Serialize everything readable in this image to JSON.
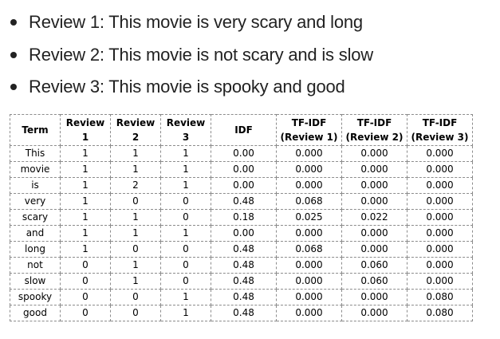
{
  "reviews": [
    "Review 1: This movie is very scary and long",
    "Review 2: This movie is not scary and is slow",
    "Review 3: This movie is spooky and good"
  ],
  "table": {
    "headers": [
      [
        "Term"
      ],
      [
        "Review",
        "1"
      ],
      [
        "Review",
        "2"
      ],
      [
        "Review",
        "3"
      ],
      [
        "IDF"
      ],
      [
        "TF-IDF",
        "(Review 1)"
      ],
      [
        "TF-IDF",
        "(Review 2)"
      ],
      [
        "TF-IDF",
        "(Review 3)"
      ]
    ],
    "rows": [
      [
        "This",
        "1",
        "1",
        "1",
        "0.00",
        "0.000",
        "0.000",
        "0.000"
      ],
      [
        "movie",
        "1",
        "1",
        "1",
        "0.00",
        "0.000",
        "0.000",
        "0.000"
      ],
      [
        "is",
        "1",
        "2",
        "1",
        "0.00",
        "0.000",
        "0.000",
        "0.000"
      ],
      [
        "very",
        "1",
        "0",
        "0",
        "0.48",
        "0.068",
        "0.000",
        "0.000"
      ],
      [
        "scary",
        "1",
        "1",
        "0",
        "0.18",
        "0.025",
        "0.022",
        "0.000"
      ],
      [
        "and",
        "1",
        "1",
        "1",
        "0.00",
        "0.000",
        "0.000",
        "0.000"
      ],
      [
        "long",
        "1",
        "0",
        "0",
        "0.48",
        "0.068",
        "0.000",
        "0.000"
      ],
      [
        "not",
        "0",
        "1",
        "0",
        "0.48",
        "0.000",
        "0.060",
        "0.000"
      ],
      [
        "slow",
        "0",
        "1",
        "0",
        "0.48",
        "0.000",
        "0.060",
        "0.000"
      ],
      [
        "spooky",
        "0",
        "0",
        "1",
        "0.48",
        "0.000",
        "0.000",
        "0.080"
      ],
      [
        "good",
        "0",
        "0",
        "1",
        "0.48",
        "0.000",
        "0.000",
        "0.080"
      ]
    ]
  }
}
